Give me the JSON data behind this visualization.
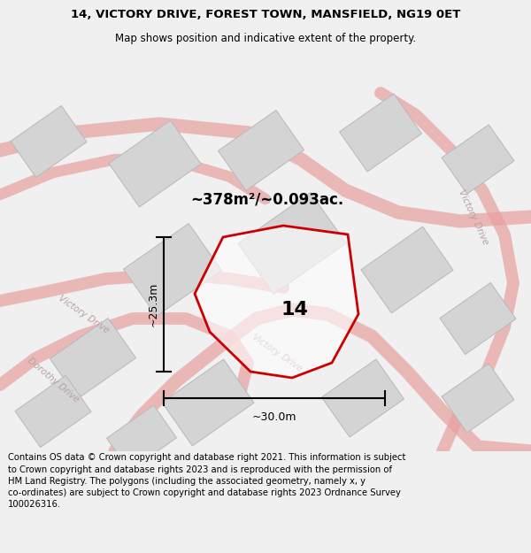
{
  "title_line1": "14, VICTORY DRIVE, FOREST TOWN, MANSFIELD, NG19 0ET",
  "title_line2": "Map shows position and indicative extent of the property.",
  "footer_text": "Contains OS data © Crown copyright and database right 2021. This information is subject to Crown copyright and database rights 2023 and is reproduced with the permission of HM Land Registry. The polygons (including the associated geometry, namely x, y co-ordinates) are subject to Crown copyright and database rights 2023 Ordnance Survey 100026316.",
  "area_label": "~378m²/~0.093ac.",
  "property_number": "14",
  "dim_width": "~30.0m",
  "dim_height": "~25.3m",
  "bg_color": "#f0f0f0",
  "map_bg": "#f8f8f8",
  "building_color": "#d4d4d4",
  "building_edge": "#b8b8b8",
  "road_line_color": "#e8a0a0",
  "property_outline_color": "#cc0000",
  "street_label_color": "#b8a0a0",
  "title_fontsize": 9.5,
  "subtitle_fontsize": 8.5,
  "footer_fontsize": 7.2
}
